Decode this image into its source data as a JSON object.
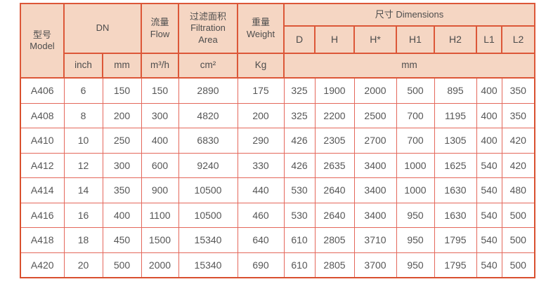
{
  "palette": {
    "header_background": "#f5d6c3",
    "border_strong": "#dc5738",
    "grid_line": "#e4685b",
    "text": "#565656",
    "page_background": "#ffffff"
  },
  "table": {
    "header": {
      "model_zh": "型号",
      "model_en": "Model",
      "dn": "DN",
      "flow_zh": "流量",
      "flow_en": "Flow",
      "filtration_zh": "过滤面积",
      "filtration_en_line1": "Filtration",
      "filtration_en_line2": "Area",
      "weight_zh": "重量",
      "weight_en": "Weight",
      "dimensions": "尺寸 Dimensions",
      "dim_cols": [
        "D",
        "H",
        "H*",
        "H1",
        "H2",
        "L1",
        "L2"
      ],
      "units": {
        "dn_inch": "inch",
        "dn_mm": "mm",
        "flow": "m³/h",
        "area": "cm²",
        "weight": "Kg",
        "dimensions": "mm"
      }
    },
    "column_ids": [
      "model",
      "dn-inch",
      "dn-mm",
      "flow",
      "filtration-area",
      "weight",
      "dim-d",
      "dim-h",
      "dim-h-star",
      "dim-h1",
      "dim-h2",
      "dim-l1",
      "dim-l2"
    ],
    "rows": [
      {
        "model": "A406",
        "cells": [
          "6",
          "150",
          "150",
          "2890",
          "175",
          "325",
          "1900",
          "2000",
          "500",
          "895",
          "400",
          "350"
        ]
      },
      {
        "model": "A408",
        "cells": [
          "8",
          "200",
          "300",
          "4820",
          "200",
          "325",
          "2200",
          "2500",
          "700",
          "1195",
          "400",
          "350"
        ]
      },
      {
        "model": "A410",
        "cells": [
          "10",
          "250",
          "400",
          "6830",
          "290",
          "426",
          "2305",
          "2700",
          "700",
          "1305",
          "400",
          "420"
        ]
      },
      {
        "model": "A412",
        "cells": [
          "12",
          "300",
          "600",
          "9240",
          "330",
          "426",
          "2635",
          "3400",
          "1000",
          "1625",
          "540",
          "420"
        ]
      },
      {
        "model": "A414",
        "cells": [
          "14",
          "350",
          "900",
          "10500",
          "440",
          "530",
          "2640",
          "3400",
          "1000",
          "1630",
          "540",
          "480"
        ]
      },
      {
        "model": "A416",
        "cells": [
          "16",
          "400",
          "1100",
          "10500",
          "460",
          "530",
          "2640",
          "3400",
          "950",
          "1630",
          "540",
          "500"
        ]
      },
      {
        "model": "A418",
        "cells": [
          "18",
          "450",
          "1500",
          "15340",
          "640",
          "610",
          "2805",
          "3710",
          "950",
          "1795",
          "540",
          "500"
        ]
      },
      {
        "model": "A420",
        "cells": [
          "20",
          "500",
          "2000",
          "15340",
          "690",
          "610",
          "2805",
          "3700",
          "950",
          "1795",
          "540",
          "500"
        ]
      }
    ]
  }
}
